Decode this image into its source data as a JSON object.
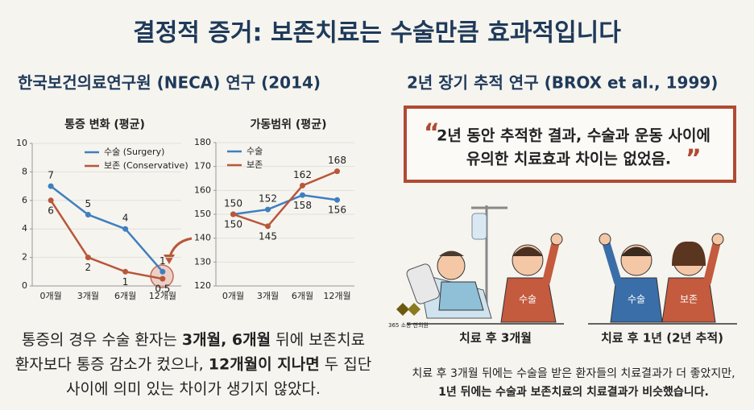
{
  "title": "결정적 증거: 보존치료는 수술만큼 효과적입니다",
  "left": {
    "heading": "한국보건의료연구원 (NECA) 연구 (2014)",
    "caption": [
      [
        {
          "text": "통증의 경우 수술 환자는 "
        },
        {
          "text": "3개월, 6개월",
          "bold": true
        },
        {
          "text": " 뒤에 보존치료"
        }
      ],
      [
        {
          "text": "환자보다 통증 감소가 컸으나, "
        },
        {
          "text": "12개월이 지나면",
          "bold": true
        },
        {
          "text": " 두 집단"
        }
      ],
      [
        {
          "text": "사이에 의미 있는 차이가 생기지 않았다."
        }
      ]
    ]
  },
  "chart_data": [
    {
      "type": "line",
      "title": "통증 변화 (평균)",
      "categories": [
        "0개월",
        "3개월",
        "6개월",
        "12개월"
      ],
      "series": [
        {
          "name": "수술 (Surgery)",
          "color": "#3f7fc0",
          "values": [
            7,
            5,
            4,
            1
          ]
        },
        {
          "name": "보존 (Conservative)",
          "color": "#b8573a",
          "values": [
            6,
            2,
            1,
            0.5
          ]
        }
      ],
      "ylim": [
        0,
        10
      ],
      "yticks": [
        0,
        2,
        4,
        6,
        8,
        10
      ],
      "grid": true,
      "legend": "top-right"
    },
    {
      "type": "line",
      "title": "가동범위 (평균)",
      "categories": [
        "0개월",
        "3개월",
        "6개월",
        "12개월"
      ],
      "series": [
        {
          "name": "수술",
          "color": "#3f7fc0",
          "values": [
            150,
            152,
            158,
            156
          ]
        },
        {
          "name": "보존",
          "color": "#b8573a",
          "values": [
            150,
            145,
            162,
            168
          ]
        }
      ],
      "ylim": [
        120,
        180
      ],
      "yticks": [
        120,
        130,
        140,
        150,
        160,
        170,
        180
      ],
      "grid": true,
      "legend": "top-left"
    }
  ],
  "right": {
    "heading": "2년 장기 추적 연구 (BROX et al., 1999)",
    "open_mark": "“",
    "close_mark": "”",
    "quote": [
      "2년 동안 추적한 결과, 수술과 운동 사이에",
      "유의한 치료효과 차이는 없었음."
    ],
    "panels": [
      {
        "label": "치료 후 3개월",
        "shirts": [
          "수술"
        ]
      },
      {
        "label": "치료 후 1년 (2년 추적)",
        "shirts": [
          "수술",
          "보존"
        ]
      }
    ],
    "logo": "365 소통 한의원",
    "summary": [
      [
        {
          "text": "치료 후 3개월 뒤에는 수술을 받은 환자들의 치료결과가 더 좋았지만,"
        }
      ],
      [
        {
          "text": "1년 뒤에는 수술과 보존치료의 치료결과가 비슷했습니다.",
          "bold": true
        }
      ]
    ]
  }
}
